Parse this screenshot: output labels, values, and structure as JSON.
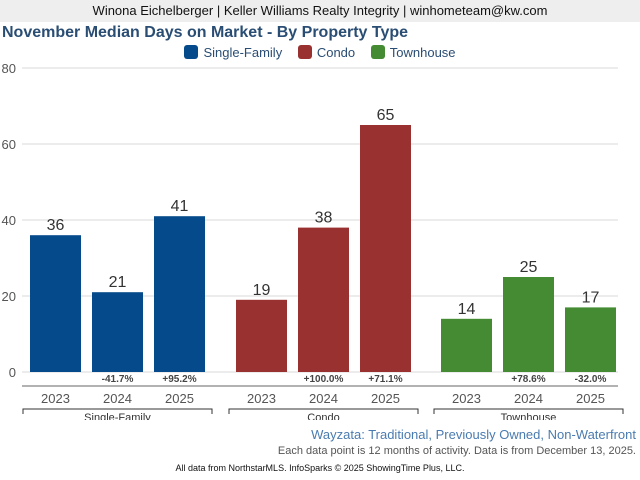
{
  "header": {
    "agent_line": "Winona Eichelberger | Keller Williams Realty Integrity | winhometeam@kw.com"
  },
  "chart_data": {
    "type": "bar",
    "title": "November Median Days on Market - By Property Type",
    "ylim": [
      0,
      80
    ],
    "yticks": [
      0,
      20,
      40,
      60,
      80
    ],
    "grid": true,
    "legend_position": "top-center",
    "groups": [
      {
        "name": "Single-Family",
        "color": "#054b8c",
        "bars": [
          {
            "year": "2023",
            "value": 36,
            "change": ""
          },
          {
            "year": "2024",
            "value": 21,
            "change": "-41.7%"
          },
          {
            "year": "2025",
            "value": 41,
            "change": "+95.2%"
          }
        ]
      },
      {
        "name": "Condo",
        "color": "#993131",
        "bars": [
          {
            "year": "2023",
            "value": 19,
            "change": ""
          },
          {
            "year": "2024",
            "value": 38,
            "change": "+100.0%"
          },
          {
            "year": "2025",
            "value": 65,
            "change": "+71.1%"
          }
        ]
      },
      {
        "name": "Townhouse",
        "color": "#448b33",
        "bars": [
          {
            "year": "2023",
            "value": 14,
            "change": ""
          },
          {
            "year": "2024",
            "value": 25,
            "change": "+78.6%"
          },
          {
            "year": "2025",
            "value": 17,
            "change": "-32.0%"
          }
        ]
      }
    ]
  },
  "footer": {
    "area": "Wayzata: Traditional, Previously Owned, Non-Waterfront",
    "note": "Each data point is 12 months of activity. Data is from December 13, 2025.",
    "source": "All data from NorthstarMLS. InfoSparks © 2025 ShowingTime Plus, LLC."
  }
}
